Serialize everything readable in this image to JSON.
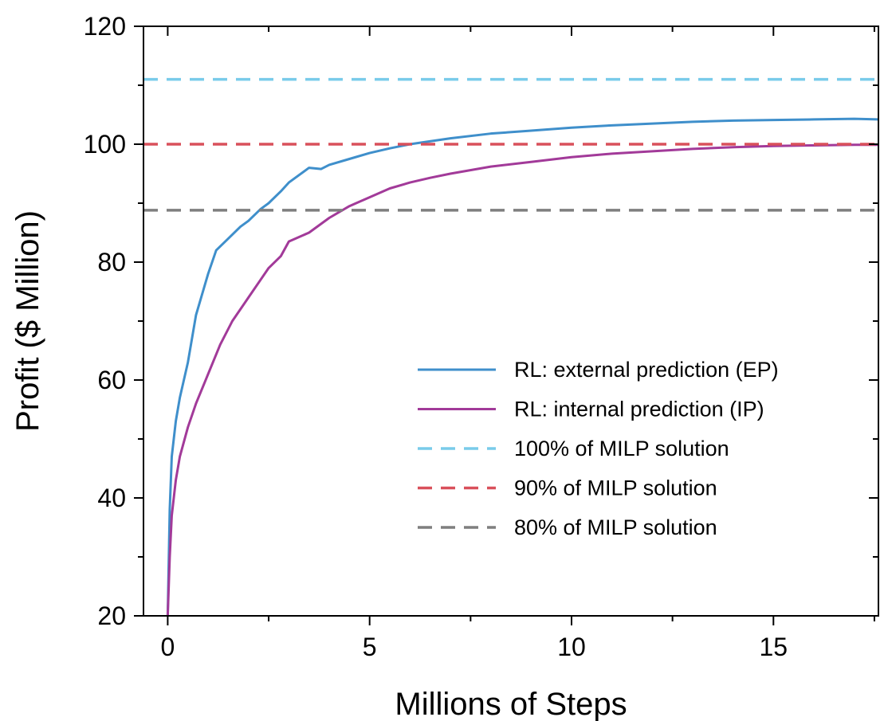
{
  "chart_data": {
    "type": "line",
    "xlabel": "Millions of Steps",
    "ylabel": "Profit ($ Million)",
    "xlim": [
      -0.6,
      17.6
    ],
    "ylim": [
      20,
      120
    ],
    "x_ticks": [
      0,
      5,
      10,
      15
    ],
    "x_tick_labels": [
      "0",
      "5",
      "10",
      "15"
    ],
    "y_ticks": [
      20,
      40,
      60,
      80,
      100,
      120
    ],
    "y_tick_labels": [
      "20",
      "40",
      "60",
      "80",
      "100",
      "120"
    ],
    "grid": false,
    "legend_position": "lower-right",
    "series": [
      {
        "name": "RL: external prediction (EP)",
        "style": "solid",
        "color": "#3f8fcb",
        "x": [
          0,
          0.05,
          0.1,
          0.2,
          0.3,
          0.5,
          0.7,
          1.0,
          1.2,
          1.5,
          1.8,
          2.0,
          2.3,
          2.5,
          2.8,
          3.0,
          3.5,
          3.8,
          4.0,
          4.5,
          5.0,
          5.5,
          6.0,
          7.0,
          8.0,
          9.0,
          10.0,
          11.0,
          12.0,
          13.0,
          14.0,
          15.0,
          16.0,
          17.0,
          17.6
        ],
        "values": [
          20,
          38,
          47,
          53,
          57,
          63,
          71,
          78,
          82,
          84,
          86,
          87,
          89,
          90,
          92,
          93.5,
          96,
          95.8,
          96.5,
          97.5,
          98.5,
          99.3,
          100,
          101,
          101.8,
          102.3,
          102.8,
          103.2,
          103.5,
          103.8,
          104,
          104.1,
          104.2,
          104.3,
          104.2
        ]
      },
      {
        "name": "RL: internal prediction (IP)",
        "style": "solid",
        "color": "#a23a99",
        "x": [
          0,
          0.05,
          0.1,
          0.2,
          0.3,
          0.5,
          0.7,
          1.0,
          1.3,
          1.6,
          2.0,
          2.3,
          2.5,
          2.8,
          3.0,
          3.5,
          4.0,
          4.5,
          5.0,
          5.5,
          6.0,
          6.5,
          7.0,
          8.0,
          9.0,
          10.0,
          11.0,
          12.0,
          13.0,
          14.0,
          15.0,
          16.0,
          17.0,
          17.6
        ],
        "values": [
          20,
          30,
          37,
          43,
          47,
          52,
          56,
          61,
          66,
          70,
          74,
          77,
          79,
          81,
          83.5,
          85,
          87.5,
          89.5,
          91,
          92.5,
          93.5,
          94.3,
          95,
          96.2,
          97,
          97.8,
          98.4,
          98.8,
          99.2,
          99.5,
          99.7,
          99.8,
          99.9,
          99.9
        ]
      },
      {
        "name": "100% of MILP solution",
        "style": "dashed",
        "color": "#79cbea",
        "x": [
          -0.6,
          17.6
        ],
        "values": [
          111,
          111
        ]
      },
      {
        "name": "90% of MILP solution",
        "style": "dashed",
        "color": "#d9505b",
        "x": [
          -0.6,
          17.6
        ],
        "values": [
          100,
          100
        ]
      },
      {
        "name": "80% of MILP solution",
        "style": "dashed",
        "color": "#7f7f7f",
        "x": [
          -0.6,
          17.6
        ],
        "values": [
          88.8,
          88.8
        ]
      }
    ]
  }
}
